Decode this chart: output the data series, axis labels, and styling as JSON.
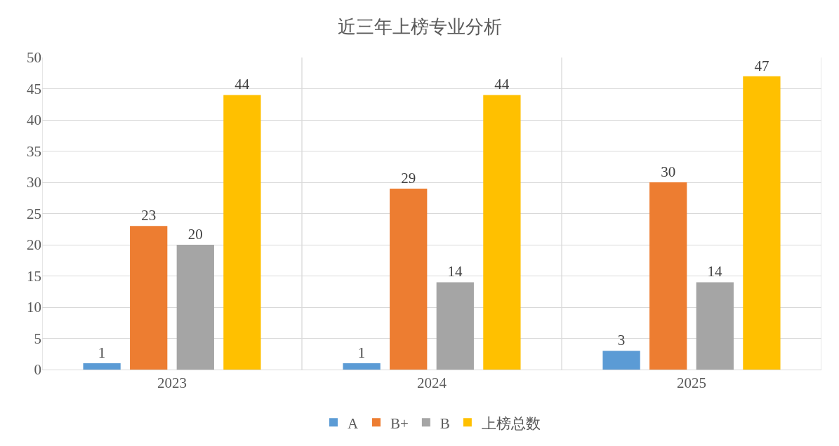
{
  "chart_data": {
    "type": "bar",
    "title": "近三年上榜专业分析",
    "categories": [
      "2023",
      "2024",
      "2025"
    ],
    "series": [
      {
        "name": "A",
        "color": "#5b9bd5",
        "values": [
          1,
          1,
          3
        ]
      },
      {
        "name": "B+",
        "color": "#ed7d31",
        "values": [
          23,
          29,
          30
        ]
      },
      {
        "name": "B",
        "color": "#a5a5a5",
        "values": [
          20,
          14,
          14
        ]
      },
      {
        "name": "上榜总数",
        "color": "#ffc000",
        "values": [
          44,
          44,
          47
        ]
      }
    ],
    "ylim": [
      0,
      50
    ],
    "yticks": [
      0,
      5,
      10,
      15,
      20,
      25,
      30,
      35,
      40,
      45,
      50
    ],
    "grid": true,
    "legend": "bottom",
    "data_labels": true
  }
}
